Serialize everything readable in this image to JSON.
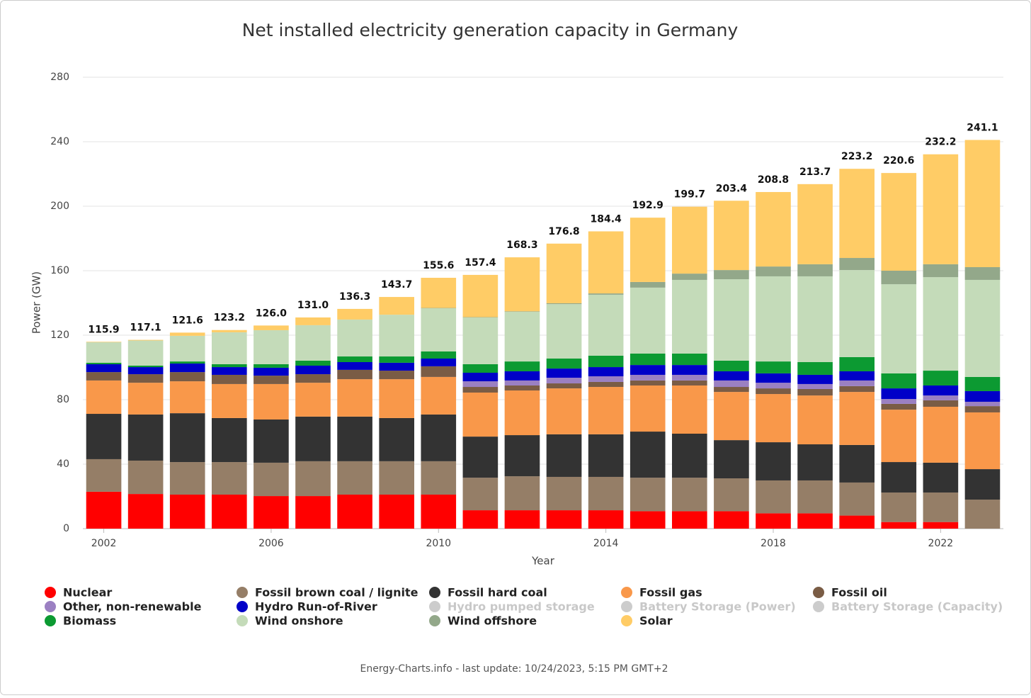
{
  "chart_data": {
    "type": "stacked_bar",
    "title": "Net installed electricity generation capacity in Germany",
    "x_label": "Year",
    "y_label": "Power (GW)",
    "footer": "Energy-Charts.info - last update: 10/24/2023, 5:15 PM GMT+2",
    "categories": [
      "2002",
      null,
      null,
      null,
      "2006",
      null,
      null,
      null,
      "2010",
      null,
      null,
      null,
      "2014",
      null,
      null,
      null,
      "2018",
      null,
      null,
      null,
      "2022",
      null
    ],
    "ylim": [
      0,
      280
    ],
    "yticks": [
      0,
      40,
      80,
      120,
      160,
      200,
      240,
      280
    ],
    "grid": true,
    "legend": "bottom",
    "series": [
      {
        "name": "Nuclear",
        "color": "#ff0000",
        "values": [
          22.9,
          21.5,
          21.1,
          21.1,
          20.2,
          20.2,
          21.1,
          21.1,
          21.1,
          11.4,
          11.4,
          11.4,
          11.4,
          10.8,
          10.8,
          10.8,
          9.5,
          9.5,
          8.1,
          4.1,
          4.1,
          0
        ]
      },
      {
        "name": "Fossil brown coal / lignite",
        "color": "#957e67",
        "values": [
          20.2,
          20.7,
          20.2,
          20.2,
          20.7,
          21.6,
          20.7,
          20.7,
          20.7,
          20.2,
          21.1,
          20.7,
          20.7,
          20.8,
          20.8,
          20.4,
          20.4,
          20.4,
          20.5,
          18.3,
          18.3,
          18.0
        ]
      },
      {
        "name": "Fossil hard coal",
        "color": "#333333",
        "values": [
          28.1,
          28.6,
          30.3,
          27.3,
          26.8,
          27.7,
          27.7,
          26.8,
          29.0,
          25.5,
          25.5,
          26.4,
          26.4,
          28.6,
          27.3,
          23.7,
          23.7,
          22.4,
          23.3,
          18.9,
          18.5,
          18.9
        ]
      },
      {
        "name": "Fossil gas",
        "color": "#f9984a",
        "values": [
          20.7,
          19.7,
          19.8,
          21.1,
          22.0,
          21.0,
          23.2,
          24.1,
          23.3,
          27.3,
          27.7,
          28.5,
          29.4,
          28.6,
          29.9,
          29.9,
          29.9,
          30.3,
          32.9,
          32.5,
          34.7,
          35.2
        ]
      },
      {
        "name": "Fossil oil",
        "color": "#7a5c45",
        "values": [
          5.2,
          5.3,
          5.7,
          5.7,
          5.2,
          5.3,
          5.8,
          5.3,
          6.6,
          3.5,
          3.1,
          3.1,
          3.1,
          3.1,
          3.1,
          3.1,
          3.5,
          4.0,
          3.6,
          3.6,
          4.0,
          3.9
        ]
      },
      {
        "name": "Other, non-renewable",
        "color": "#9b80c2",
        "values": [
          0,
          0,
          0,
          0,
          0,
          0,
          0,
          0,
          0,
          3.5,
          3.1,
          3.5,
          3.5,
          3.5,
          3.5,
          4.0,
          3.5,
          3.1,
          3.5,
          3.0,
          3.0,
          2.7
        ]
      },
      {
        "name": "Hydro Run-of-River",
        "color": "#0000c8",
        "values": [
          4.9,
          4.4,
          5.3,
          4.8,
          4.9,
          5.3,
          4.8,
          4.9,
          4.8,
          5.3,
          5.7,
          5.7,
          5.7,
          6.1,
          6.1,
          5.7,
          5.8,
          5.7,
          5.7,
          6.6,
          6.2,
          6.6
        ]
      },
      {
        "name": "Hydro pumped storage",
        "color": "#cccccc",
        "visible": false,
        "values": [
          null,
          null,
          null,
          null,
          null,
          null,
          null,
          null,
          null,
          null,
          null,
          null,
          null,
          null,
          null,
          null,
          null,
          null,
          null,
          null,
          null,
          null
        ]
      },
      {
        "name": "Battery Storage (Power)",
        "color": "#cccccc",
        "visible": false,
        "values": [
          null,
          null,
          null,
          null,
          null,
          null,
          null,
          null,
          null,
          null,
          null,
          null,
          null,
          null,
          null,
          null,
          null,
          null,
          null,
          null,
          null,
          null
        ]
      },
      {
        "name": "Battery Storage (Capacity)",
        "color": "#cccccc",
        "visible": false,
        "values": [
          null,
          null,
          null,
          null,
          null,
          null,
          null,
          null,
          null,
          null,
          null,
          null,
          null,
          null,
          null,
          null,
          null,
          null,
          null,
          null,
          null,
          null
        ]
      },
      {
        "name": "Biomass",
        "color": "#0c9a32",
        "values": [
          0.9,
          0.9,
          1.3,
          1.8,
          2.2,
          3.1,
          3.5,
          3.9,
          4.4,
          5.3,
          6.1,
          6.2,
          7.1,
          7.1,
          7.1,
          6.6,
          7.4,
          7.9,
          8.8,
          9.3,
          9.2,
          8.8
        ]
      },
      {
        "name": "Wind onshore",
        "color": "#c4dbb9",
        "values": [
          12.7,
          15.6,
          15.9,
          19.8,
          21.1,
          22.0,
          22.9,
          25.9,
          26.8,
          29.0,
          30.8,
          33.8,
          37.8,
          40.9,
          45.7,
          50.5,
          52.8,
          53.2,
          54.0,
          55.3,
          58.0,
          60.2
        ]
      },
      {
        "name": "Wind offshore",
        "color": "#93a88a",
        "values": [
          0,
          0,
          0,
          0,
          0,
          0,
          0,
          0,
          0.2,
          0.2,
          0.3,
          0.5,
          0.8,
          3.5,
          3.9,
          5.7,
          6.1,
          7.5,
          7.5,
          8.4,
          8.0,
          7.9
        ]
      },
      {
        "name": "Solar",
        "color": "#ffcc66",
        "values": [
          0.3,
          0.4,
          2.0,
          1.4,
          2.9,
          4.8,
          6.6,
          11.0,
          18.7,
          26.2,
          33.5,
          37.0,
          38.5,
          39.9,
          41.5,
          43.0,
          46.2,
          49.7,
          55.3,
          60.6,
          68.2,
          78.9
        ]
      }
    ],
    "totals": [
      115.9,
      117.1,
      121.6,
      123.2,
      126,
      131,
      136.3,
      143.7,
      155.6,
      157.4,
      168.3,
      176.8,
      184.4,
      192.9,
      199.7,
      203.4,
      208.8,
      213.7,
      223.2,
      220.6,
      232.2,
      241.1
    ],
    "value_labels": [
      "115.9",
      "117.1",
      "121.6",
      "123.2",
      "126.0",
      "131.0",
      "136.3",
      "143.7",
      "155.6",
      "157.4",
      "168.3",
      "176.8",
      "184.4",
      "192.9",
      "199.7",
      "203.4",
      "208.8",
      "213.7",
      "223.2",
      "220.6",
      "232.2",
      "241.1"
    ]
  }
}
